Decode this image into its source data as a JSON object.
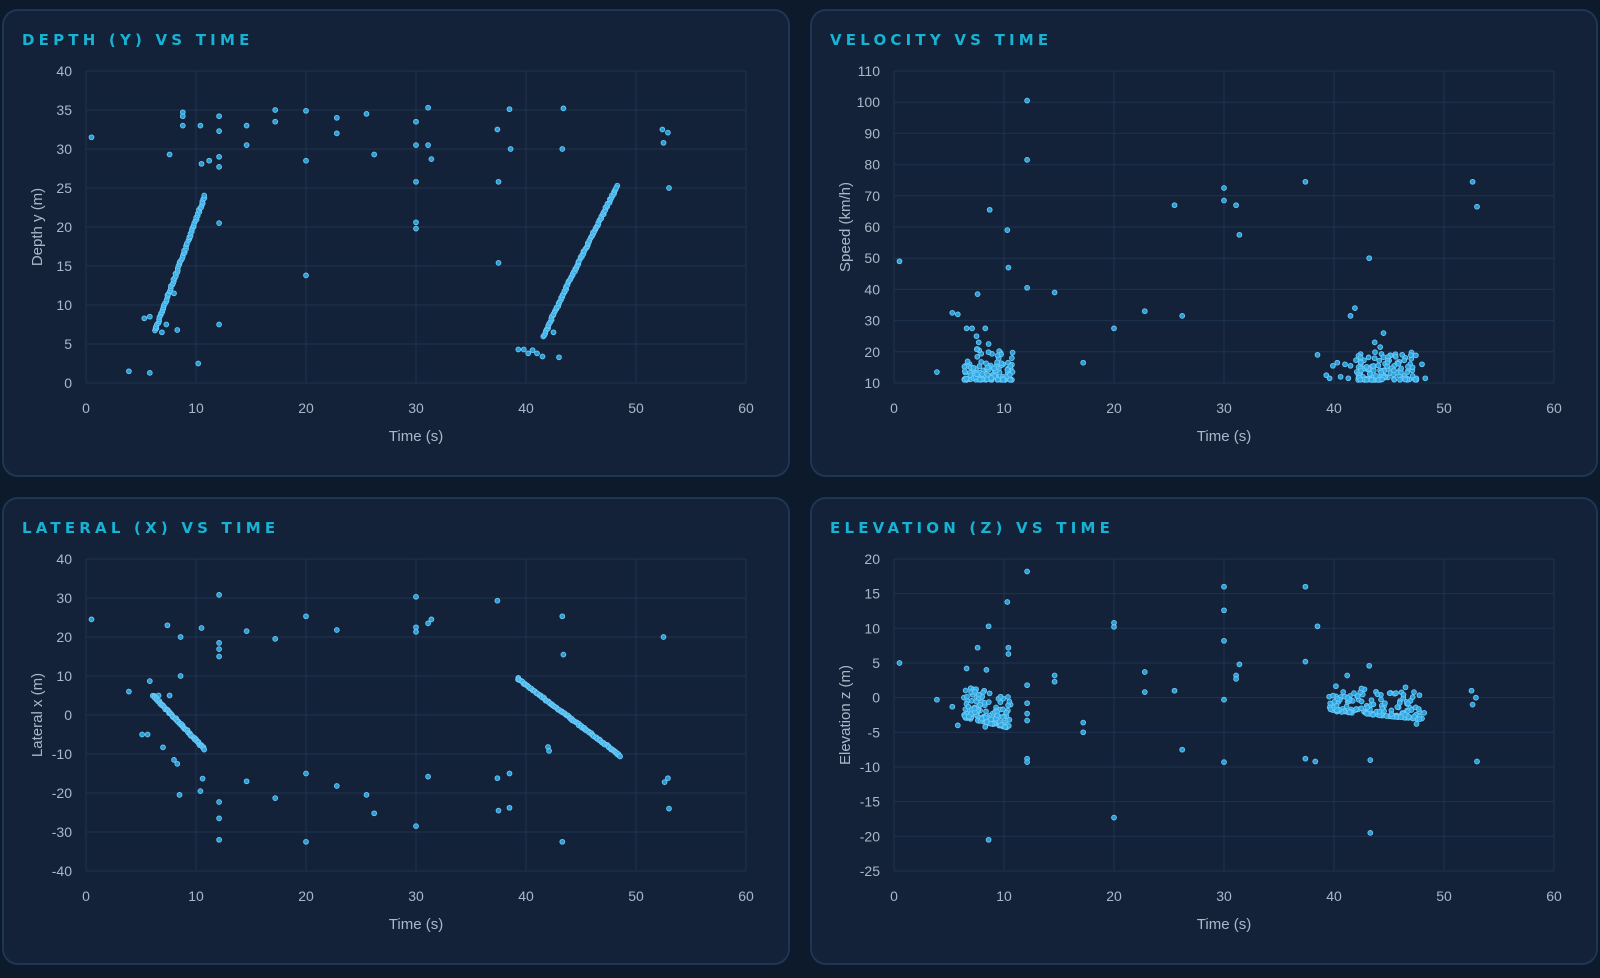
{
  "colors": {
    "accent": "#18b3d4",
    "point": "#2ea8e6",
    "point_edge": "#6ccaf5",
    "grid": "#1e3350",
    "panel": "#132238",
    "background": "#0c1a2b"
  },
  "chart_data": [
    {
      "id": "depth",
      "type": "scatter",
      "title": "DEPTH (Y) VS TIME",
      "xlabel": "Time (s)",
      "ylabel": "Depth y (m)",
      "xlim": [
        0,
        60
      ],
      "ylim": [
        0,
        40
      ],
      "xticks": [
        0,
        10,
        20,
        30,
        40,
        50,
        60
      ],
      "yticks": [
        0,
        5,
        10,
        15,
        20,
        25,
        30,
        35,
        40
      ],
      "grid": true,
      "series": [
        {
          "points": [
            [
              0.5,
              31.5
            ],
            [
              3.9,
              1.5
            ],
            [
              5.8,
              1.3
            ],
            [
              5.3,
              8.3
            ],
            [
              5.8,
              8.5
            ],
            [
              6.4,
              7.0
            ],
            [
              6.9,
              6.5
            ],
            [
              7.3,
              7.5
            ],
            [
              7.6,
              29.3
            ],
            [
              8.0,
              11.5
            ],
            [
              8.3,
              6.8
            ],
            [
              8.8,
              34.7
            ],
            [
              8.8,
              34.2
            ],
            [
              8.8,
              33.0
            ],
            [
              10.2,
              2.5
            ],
            [
              10.4,
              33.0
            ],
            [
              10.5,
              28.1
            ],
            [
              11.2,
              28.5
            ],
            [
              12.1,
              34.2
            ],
            [
              12.1,
              32.3
            ],
            [
              12.1,
              29.0
            ],
            [
              12.1,
              27.7
            ],
            [
              12.1,
              20.5
            ],
            [
              12.1,
              7.5
            ],
            [
              14.6,
              33.0
            ],
            [
              14.6,
              30.5
            ],
            [
              17.2,
              35.0
            ],
            [
              17.2,
              33.5
            ],
            [
              20.0,
              34.9
            ],
            [
              20.0,
              28.5
            ],
            [
              20.0,
              13.8
            ],
            [
              22.8,
              34.0
            ],
            [
              22.8,
              32.0
            ],
            [
              25.5,
              34.5
            ],
            [
              26.2,
              29.3
            ],
            [
              30.0,
              33.5
            ],
            [
              30.0,
              30.5
            ],
            [
              30.0,
              25.8
            ],
            [
              30.0,
              20.6
            ],
            [
              30.0,
              19.8
            ],
            [
              31.1,
              35.3
            ],
            [
              31.1,
              30.5
            ],
            [
              31.4,
              28.7
            ],
            [
              37.4,
              32.5
            ],
            [
              37.5,
              25.8
            ],
            [
              37.5,
              15.4
            ],
            [
              38.5,
              35.1
            ],
            [
              38.6,
              30.0
            ],
            [
              39.3,
              4.3
            ],
            [
              39.8,
              4.3
            ],
            [
              40.2,
              3.8
            ],
            [
              40.6,
              4.2
            ],
            [
              41.0,
              3.8
            ],
            [
              41.5,
              3.4
            ],
            [
              42.0,
              7.0
            ],
            [
              42.5,
              6.5
            ],
            [
              43.0,
              3.3
            ],
            [
              43.3,
              30.0
            ],
            [
              43.4,
              35.2
            ],
            [
              48.0,
              24.5
            ],
            [
              48.3,
              25.3
            ],
            [
              52.4,
              32.5
            ],
            [
              52.5,
              30.8
            ],
            [
              52.9,
              32.1
            ],
            [
              53.0,
              25.0
            ]
          ]
        }
      ],
      "trails": [
        {
          "x": [
            6.3,
            10.8
          ],
          "y": [
            6.8,
            24.0
          ],
          "curve": 1.0,
          "n": 75
        },
        {
          "x": [
            41.6,
            48.2
          ],
          "y": [
            5.9,
            25.0
          ],
          "curve": 0.95,
          "n": 100
        }
      ]
    },
    {
      "id": "velocity",
      "type": "scatter",
      "title": "VELOCITY VS TIME",
      "xlabel": "Time (s)",
      "ylabel": "Speed (km/h)",
      "xlim": [
        0,
        60
      ],
      "ylim": [
        10,
        110
      ],
      "xticks": [
        0,
        10,
        20,
        30,
        40,
        50,
        60
      ],
      "yticks": [
        10,
        20,
        30,
        40,
        50,
        60,
        70,
        80,
        90,
        100,
        110
      ],
      "grid": true,
      "series": [
        {
          "points": [
            [
              0.5,
              49.0
            ],
            [
              3.9,
              13.5
            ],
            [
              5.3,
              32.5
            ],
            [
              5.8,
              32.0
            ],
            [
              7.6,
              38.5
            ],
            [
              8.7,
              65.5
            ],
            [
              10.3,
              59.0
            ],
            [
              10.4,
              47.0
            ],
            [
              12.1,
              100.5
            ],
            [
              12.1,
              81.5
            ],
            [
              12.1,
              40.5
            ],
            [
              14.6,
              39.0
            ],
            [
              17.2,
              16.5
            ],
            [
              20.0,
              27.5
            ],
            [
              22.8,
              33.0
            ],
            [
              25.5,
              67.0
            ],
            [
              26.2,
              31.5
            ],
            [
              30.0,
              72.5
            ],
            [
              30.0,
              68.5
            ],
            [
              31.1,
              67.0
            ],
            [
              31.4,
              57.5
            ],
            [
              37.4,
              74.5
            ],
            [
              38.5,
              19.0
            ],
            [
              39.3,
              12.5
            ],
            [
              39.6,
              11.5
            ],
            [
              39.9,
              15.5
            ],
            [
              40.3,
              16.5
            ],
            [
              40.6,
              12.0
            ],
            [
              41.0,
              16.0
            ],
            [
              41.3,
              11.5
            ],
            [
              41.5,
              15.5
            ],
            [
              41.5,
              31.5
            ],
            [
              41.9,
              34.0
            ],
            [
              43.2,
              50.0
            ],
            [
              48.0,
              16.0
            ],
            [
              48.3,
              11.5
            ],
            [
              52.6,
              74.5
            ],
            [
              53.0,
              66.5
            ],
            [
              6.6,
              27.5
            ],
            [
              7.1,
              27.5
            ],
            [
              7.5,
              25.0
            ],
            [
              7.7,
              23.0
            ],
            [
              8.3,
              27.5
            ],
            [
              8.6,
              22.5
            ],
            [
              44.5,
              26.0
            ],
            [
              43.7,
              23.0
            ],
            [
              44.2,
              21.5
            ]
          ]
        }
      ],
      "clusters": [
        {
          "x": [
            6.3,
            10.8
          ],
          "y": [
            11.0,
            21.0
          ],
          "n": 130,
          "seed": 11
        },
        {
          "x": [
            42.0,
            47.5
          ],
          "y": [
            11.0,
            20.0
          ],
          "n": 130,
          "seed": 23
        }
      ]
    },
    {
      "id": "lateral",
      "type": "scatter",
      "title": "LATERAL (X) VS TIME",
      "xlabel": "Time (s)",
      "ylabel": "Lateral x (m)",
      "xlim": [
        0,
        60
      ],
      "ylim": [
        -40,
        40
      ],
      "xticks": [
        0,
        10,
        20,
        30,
        40,
        50,
        60
      ],
      "yticks": [
        -40,
        -30,
        -20,
        -10,
        0,
        10,
        20,
        30,
        40
      ],
      "grid": true,
      "series": [
        {
          "points": [
            [
              0.5,
              24.5
            ],
            [
              3.9,
              6.0
            ],
            [
              5.1,
              -5.0
            ],
            [
              5.6,
              -5.0
            ],
            [
              5.8,
              8.7
            ],
            [
              6.6,
              5.0
            ],
            [
              7.0,
              -8.3
            ],
            [
              7.4,
              23.0
            ],
            [
              7.6,
              5.0
            ],
            [
              8.0,
              -11.5
            ],
            [
              8.3,
              -12.5
            ],
            [
              8.5,
              -20.5
            ],
            [
              8.6,
              10.0
            ],
            [
              8.6,
              20.0
            ],
            [
              10.4,
              -19.5
            ],
            [
              10.5,
              22.3
            ],
            [
              10.6,
              -16.3
            ],
            [
              12.1,
              30.8
            ],
            [
              12.1,
              18.5
            ],
            [
              12.1,
              16.9
            ],
            [
              12.1,
              15.0
            ],
            [
              12.1,
              -22.3
            ],
            [
              12.1,
              -26.5
            ],
            [
              12.1,
              -32.0
            ],
            [
              14.6,
              21.5
            ],
            [
              14.6,
              -17.0
            ],
            [
              17.2,
              19.5
            ],
            [
              17.2,
              -21.3
            ],
            [
              20.0,
              25.3
            ],
            [
              20.0,
              -15.0
            ],
            [
              20.0,
              -32.5
            ],
            [
              22.8,
              21.8
            ],
            [
              22.8,
              -18.2
            ],
            [
              25.5,
              -20.5
            ],
            [
              26.2,
              -25.2
            ],
            [
              30.0,
              30.3
            ],
            [
              30.0,
              22.5
            ],
            [
              30.0,
              21.3
            ],
            [
              30.0,
              -28.5
            ],
            [
              31.1,
              23.5
            ],
            [
              31.4,
              24.5
            ],
            [
              31.1,
              -15.8
            ],
            [
              37.4,
              29.3
            ],
            [
              37.4,
              -16.2
            ],
            [
              37.5,
              -24.5
            ],
            [
              38.5,
              -15.0
            ],
            [
              38.5,
              -23.8
            ],
            [
              39.3,
              9.5
            ],
            [
              42.0,
              -8.2
            ],
            [
              42.1,
              -9.2
            ],
            [
              43.3,
              25.3
            ],
            [
              43.4,
              15.5
            ],
            [
              43.3,
              -32.5
            ],
            [
              52.5,
              20.0
            ],
            [
              52.6,
              -17.2
            ],
            [
              52.9,
              -16.2
            ],
            [
              53.0,
              -24.0
            ]
          ]
        }
      ],
      "trails": [
        {
          "x": [
            6.1,
            10.8
          ],
          "y": [
            5.0,
            -8.8
          ],
          "curve": 1.0,
          "n": 70
        },
        {
          "x": [
            39.3,
            48.6
          ],
          "y": [
            9.2,
            -10.5
          ],
          "curve": 1.0,
          "n": 110
        }
      ]
    },
    {
      "id": "elevation",
      "type": "scatter",
      "title": "ELEVATION (Z) VS TIME",
      "xlabel": "Time (s)",
      "ylabel": "Elevation z (m)",
      "xlim": [
        0,
        60
      ],
      "ylim": [
        -25,
        20
      ],
      "xticks": [
        0,
        10,
        20,
        30,
        40,
        50,
        60
      ],
      "yticks": [
        -25,
        -20,
        -15,
        -10,
        -5,
        0,
        5,
        10,
        15,
        20
      ],
      "grid": true,
      "series": [
        {
          "points": [
            [
              0.5,
              5.0
            ],
            [
              3.9,
              -0.3
            ],
            [
              5.3,
              -1.3
            ],
            [
              5.8,
              -4.0
            ],
            [
              6.6,
              4.2
            ],
            [
              7.1,
              -1.8
            ],
            [
              7.6,
              7.2
            ],
            [
              8.2,
              1.0
            ],
            [
              8.3,
              -4.2
            ],
            [
              8.4,
              4.0
            ],
            [
              8.6,
              10.3
            ],
            [
              8.6,
              -20.5
            ],
            [
              10.3,
              13.8
            ],
            [
              10.4,
              7.2
            ],
            [
              10.4,
              6.3
            ],
            [
              10.6,
              -1.0
            ],
            [
              12.1,
              18.2
            ],
            [
              12.1,
              1.8
            ],
            [
              12.1,
              -0.8
            ],
            [
              12.1,
              -2.3
            ],
            [
              12.1,
              -3.3
            ],
            [
              12.1,
              -8.8
            ],
            [
              12.1,
              -9.3
            ],
            [
              14.6,
              3.2
            ],
            [
              14.6,
              2.3
            ],
            [
              17.2,
              -3.6
            ],
            [
              17.2,
              -5.0
            ],
            [
              20.0,
              10.8
            ],
            [
              20.0,
              10.2
            ],
            [
              20.0,
              -17.3
            ],
            [
              22.8,
              3.7
            ],
            [
              22.8,
              0.8
            ],
            [
              25.5,
              1.0
            ],
            [
              26.2,
              -7.5
            ],
            [
              30.0,
              16.0
            ],
            [
              30.0,
              12.6
            ],
            [
              30.0,
              8.2
            ],
            [
              30.0,
              -0.3
            ],
            [
              30.0,
              -9.3
            ],
            [
              31.1,
              3.2
            ],
            [
              31.1,
              2.7
            ],
            [
              31.4,
              4.8
            ],
            [
              37.4,
              16.0
            ],
            [
              37.4,
              5.2
            ],
            [
              37.4,
              -8.8
            ],
            [
              38.3,
              -9.2
            ],
            [
              38.5,
              10.3
            ],
            [
              41.2,
              3.2
            ],
            [
              43.2,
              4.6
            ],
            [
              43.3,
              -9.0
            ],
            [
              43.3,
              -19.5
            ],
            [
              46.0,
              -0.5
            ],
            [
              46.5,
              1.5
            ],
            [
              47.5,
              -3.8
            ],
            [
              48.0,
              -3.0
            ],
            [
              48.2,
              -2.2
            ],
            [
              52.5,
              1.0
            ],
            [
              52.6,
              -1.0
            ],
            [
              52.9,
              0.0
            ],
            [
              53.0,
              -9.2
            ]
          ]
        }
      ],
      "clusters": [
        {
          "x": [
            6.3,
            10.6
          ],
          "y": [
            -3.5,
            1.0
          ],
          "tilt": -1.6,
          "n": 130,
          "seed": 37
        },
        {
          "x": [
            39.5,
            47.8
          ],
          "y": [
            -2.5,
            1.5
          ],
          "tilt": -1.2,
          "n": 150,
          "seed": 53
        }
      ]
    }
  ]
}
